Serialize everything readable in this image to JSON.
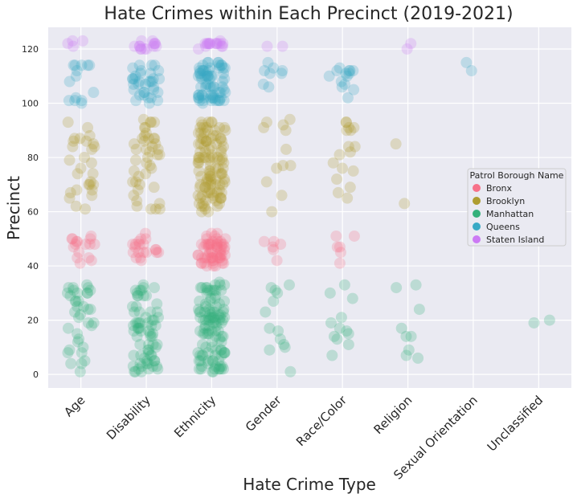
{
  "chart_data": {
    "type": "scatter",
    "subtype": "strip",
    "title": "Hate Crimes within Each Precinct (2019-2021)",
    "xlabel": "Hate Crime Type",
    "ylabel": "Precinct",
    "categories": [
      "Age",
      "Disability",
      "Ethnicity",
      "Gender",
      "Race/Color",
      "Religion",
      "Sexual Orientation",
      "Unclassified"
    ],
    "ylim": [
      -5,
      128
    ],
    "yticks": [
      0,
      20,
      40,
      60,
      80,
      100,
      120
    ],
    "grid": true,
    "legend": {
      "title": "Patrol Borough Name",
      "placement": "center-right",
      "entries": [
        "Bronx",
        "Brooklyn",
        "Manhattan",
        "Queens",
        "Staten Island"
      ]
    },
    "colors": {
      "Bronx": "#f77189",
      "Brooklyn": "#ae9d31",
      "Manhattan": "#33b07a",
      "Queens": "#38a9c5",
      "Staten Island": "#cc7af4",
      "plot_background": "#eaeaf2"
    },
    "series": [
      {
        "name": "Bronx",
        "ranges": [
          [
            40,
            52
          ]
        ],
        "counts": [
          16,
          20,
          60,
          5,
          6,
          0,
          0,
          0
        ]
      },
      {
        "name": "Brooklyn",
        "ranges": [
          [
            60,
            94
          ]
        ],
        "counts": [
          28,
          42,
          110,
          12,
          16,
          1,
          0,
          0
        ]
      },
      {
        "name": "Manhattan",
        "ranges": [
          [
            1,
            34
          ]
        ],
        "counts": [
          36,
          70,
          110,
          12,
          12,
          5,
          0,
          1
        ]
      },
      {
        "name": "Queens",
        "ranges": [
          [
            100,
            115
          ]
        ],
        "counts": [
          14,
          34,
          70,
          8,
          14,
          0,
          1,
          0
        ]
      },
      {
        "name": "Staten Island",
        "ranges": [
          [
            120,
            123
          ]
        ],
        "counts": [
          4,
          14,
          16,
          2,
          0,
          1,
          0,
          0
        ]
      }
    ],
    "points": [
      {
        "series": "Staten Island",
        "category": "Religion",
        "y": 120
      },
      {
        "series": "Queens",
        "category": "Sexual Orientation",
        "y": 115
      },
      {
        "series": "Brooklyn",
        "category": "Religion",
        "y": 63
      },
      {
        "series": "Manhattan",
        "category": "Religion",
        "y": 24
      },
      {
        "series": "Manhattan",
        "category": "Religion",
        "y": 17
      },
      {
        "series": "Manhattan",
        "category": "Religion",
        "y": 14
      },
      {
        "series": "Manhattan",
        "category": "Religion",
        "y": 9
      },
      {
        "series": "Manhattan",
        "category": "Unclassified",
        "y": 19
      },
      {
        "series": "Brooklyn",
        "category": "Race/Color",
        "y": 90
      },
      {
        "series": "Bronx",
        "category": "Gender",
        "y": 49
      },
      {
        "series": "Manhattan",
        "category": "Gender",
        "y": 1
      }
    ]
  }
}
